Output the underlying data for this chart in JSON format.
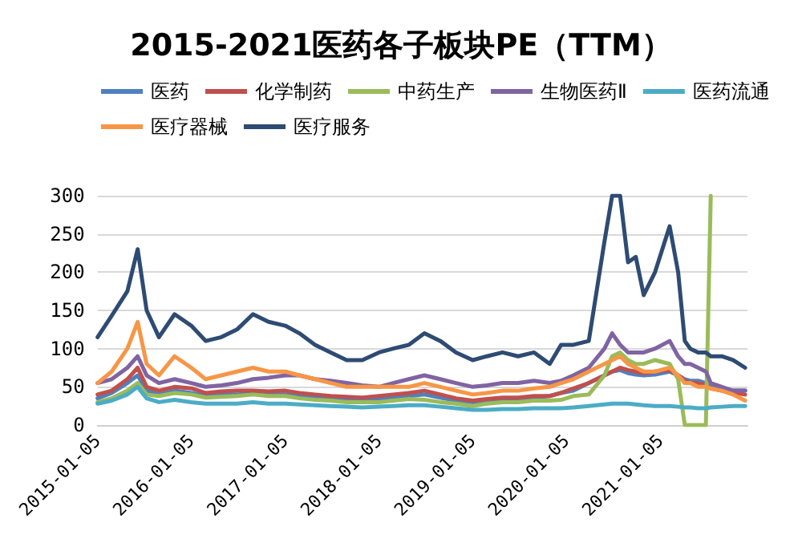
{
  "chart_data": {
    "type": "line",
    "title": "2015-2021医药各子板块PE（TTM）",
    "x": [
      "2015-01-05",
      "2015-03-01",
      "2015-05-01",
      "2015-06-10",
      "2015-07-15",
      "2015-09-01",
      "2015-11-01",
      "2016-01-05",
      "2016-03-01",
      "2016-05-01",
      "2016-07-01",
      "2016-09-01",
      "2016-11-01",
      "2017-01-05",
      "2017-03-01",
      "2017-05-01",
      "2017-07-01",
      "2017-09-01",
      "2017-11-01",
      "2018-01-05",
      "2018-03-01",
      "2018-05-01",
      "2018-07-01",
      "2018-09-01",
      "2018-11-01",
      "2019-01-05",
      "2019-03-01",
      "2019-05-01",
      "2019-07-01",
      "2019-09-01",
      "2019-11-01",
      "2019-12-15",
      "2020-02-01",
      "2020-04-01",
      "2020-06-01",
      "2020-07-01",
      "2020-08-01",
      "2020-09-01",
      "2020-10-01",
      "2020-11-01",
      "2020-12-15",
      "2021-02-10",
      "2021-03-15",
      "2021-04-10",
      "2021-05-01",
      "2021-06-01",
      "2021-07-01",
      "2021-07-20",
      "2021-09-01",
      "2021-10-15",
      "2021-12-01"
    ],
    "series": [
      {
        "name": "医药",
        "color": "#4f81bd",
        "values": [
          35,
          42,
          55,
          65,
          45,
          40,
          45,
          42,
          38,
          40,
          40,
          42,
          40,
          40,
          38,
          36,
          34,
          33,
          32,
          34,
          36,
          38,
          40,
          36,
          32,
          30,
          32,
          34,
          34,
          36,
          38,
          42,
          45,
          55,
          65,
          70,
          72,
          68,
          66,
          65,
          66,
          70,
          65,
          60,
          58,
          58,
          55,
          52,
          48,
          45,
          45
        ]
      },
      {
        "name": "化学制药",
        "color": "#c0504d",
        "values": [
          40,
          45,
          60,
          75,
          50,
          45,
          50,
          48,
          42,
          44,
          45,
          45,
          44,
          45,
          42,
          40,
          38,
          37,
          36,
          38,
          40,
          42,
          45,
          40,
          35,
          32,
          34,
          36,
          36,
          38,
          38,
          42,
          48,
          55,
          65,
          70,
          75,
          72,
          70,
          68,
          70,
          72,
          65,
          58,
          55,
          55,
          52,
          48,
          45,
          42,
          40
        ]
      },
      {
        "name": "中药生产",
        "color": "#9bbb59",
        "values": [
          30,
          35,
          45,
          55,
          40,
          38,
          42,
          40,
          36,
          37,
          38,
          40,
          38,
          38,
          35,
          33,
          32,
          30,
          30,
          30,
          32,
          34,
          33,
          30,
          28,
          25,
          28,
          30,
          30,
          32,
          32,
          33,
          38,
          40,
          65,
          90,
          95,
          85,
          80,
          80,
          85,
          80,
          60,
          0,
          0,
          0,
          0,
          300,
          null,
          null,
          null
        ]
      },
      {
        "name": "生物医药Ⅱ",
        "color": "#8064a2",
        "values": [
          55,
          60,
          75,
          90,
          65,
          55,
          60,
          55,
          50,
          52,
          55,
          60,
          62,
          65,
          65,
          60,
          58,
          55,
          52,
          50,
          55,
          60,
          65,
          60,
          55,
          50,
          52,
          55,
          55,
          58,
          55,
          58,
          65,
          75,
          100,
          120,
          105,
          95,
          95,
          95,
          100,
          110,
          90,
          80,
          80,
          75,
          70,
          55,
          50,
          45,
          45
        ]
      },
      {
        "name": "医药流通",
        "color": "#4bacc6",
        "values": [
          28,
          32,
          40,
          50,
          35,
          30,
          33,
          30,
          28,
          28,
          28,
          30,
          28,
          28,
          27,
          26,
          25,
          24,
          23,
          24,
          25,
          26,
          26,
          24,
          22,
          20,
          20,
          21,
          21,
          22,
          22,
          22,
          23,
          25,
          27,
          28,
          28,
          28,
          27,
          26,
          25,
          25,
          24,
          23,
          23,
          22,
          22,
          23,
          24,
          25,
          25
        ]
      },
      {
        "name": "医疗器械",
        "color": "#f79646",
        "values": [
          55,
          70,
          100,
          135,
          80,
          65,
          90,
          75,
          60,
          65,
          70,
          75,
          70,
          70,
          65,
          60,
          55,
          50,
          50,
          50,
          50,
          50,
          55,
          50,
          45,
          40,
          42,
          45,
          45,
          48,
          50,
          55,
          60,
          70,
          80,
          85,
          90,
          80,
          75,
          70,
          70,
          75,
          65,
          55,
          55,
          50,
          50,
          48,
          45,
          40,
          32
        ]
      },
      {
        "name": "医疗服务",
        "color": "#2e4b73",
        "values": [
          115,
          143,
          175,
          230,
          150,
          115,
          145,
          130,
          110,
          115,
          125,
          145,
          135,
          130,
          120,
          105,
          95,
          85,
          85,
          95,
          100,
          105,
          120,
          110,
          95,
          85,
          90,
          95,
          90,
          95,
          80,
          105,
          105,
          110,
          240,
          300,
          300,
          213,
          220,
          170,
          200,
          260,
          200,
          110,
          100,
          95,
          95,
          90,
          90,
          85,
          75
        ]
      }
    ],
    "xlim": [
      "2015-01-05",
      "2021-12-10"
    ],
    "xticks": [
      "2015-01-05",
      "2016-01-05",
      "2017-01-05",
      "2018-01-05",
      "2019-01-05",
      "2020-01-05",
      "2021-01-05"
    ],
    "ylim": [
      0,
      300
    ],
    "yticks": [
      0,
      50,
      100,
      150,
      200,
      250,
      300
    ],
    "grid": "y",
    "legend": "top left",
    "marker": "none",
    "line_style": "solid"
  }
}
